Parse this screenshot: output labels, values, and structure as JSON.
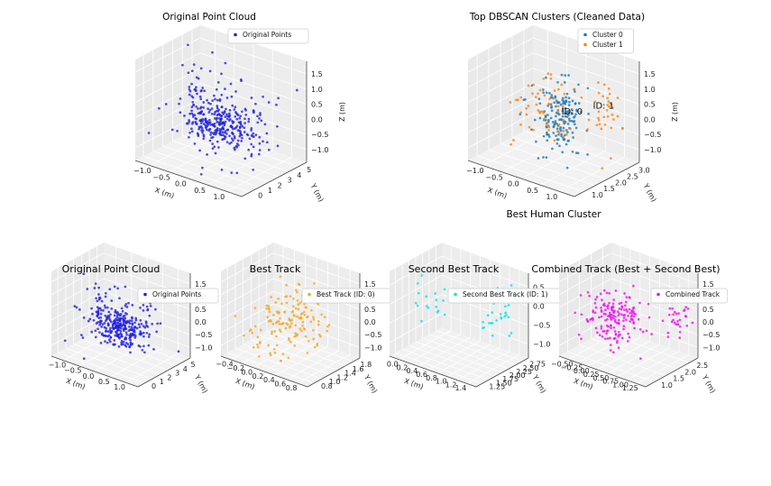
{
  "chart_data": [
    {
      "type": "scatter",
      "panel": 1,
      "title": "Original Point Cloud",
      "xlabel": "X (m)",
      "ylabel": "Y (m)",
      "zlabel": "Z (m)",
      "x_ticks": [
        "−1.0",
        "−0.5",
        "0.0",
        "0.5",
        "1.0"
      ],
      "y_ticks": [
        "0",
        "1",
        "2",
        "3",
        "4",
        "5"
      ],
      "z_ticks": [
        "1.5",
        "1.0",
        "0.5",
        "0.0",
        "−0.5",
        "−1.0"
      ],
      "xlim": [
        -1.25,
        1.4
      ],
      "ylim": [
        -0.2,
        5.3
      ],
      "zlim": [
        -1.4,
        1.6
      ],
      "grid": true,
      "legend_position": "top-right",
      "series": [
        {
          "name": "Original Points",
          "color": "#1f1fe0",
          "clusters": [
            {
              "center": [
                0.15,
                2.2,
                -0.2
              ],
              "spread": [
                0.35,
                0.6,
                0.3
              ],
              "count": 230
            },
            {
              "center": [
                -0.55,
                2.4,
                0.0
              ],
              "spread": [
                0.08,
                0.4,
                0.5
              ],
              "count": 30
            },
            {
              "center": [
                0.9,
                2.6,
                -0.3
              ],
              "spread": [
                0.12,
                0.5,
                0.45
              ],
              "count": 25
            },
            {
              "center": [
                0.1,
                2.5,
                0.0
              ],
              "spread": [
                0.9,
                1.6,
                0.7
              ],
              "count": 110
            }
          ]
        }
      ]
    },
    {
      "type": "scatter",
      "panel": 2,
      "title": "Top DBSCAN Clusters (Cleaned Data)",
      "subtitle": "Best Human Cluster",
      "xlabel": "X (m)",
      "ylabel": "Y (m)",
      "zlabel": "Z (m)",
      "x_ticks": [
        "−1.0",
        "−0.5",
        "0.0",
        "0.5",
        "1.0"
      ],
      "y_ticks": [
        "1.0",
        "1.5",
        "2.0",
        "2.5",
        "3.0"
      ],
      "z_ticks": [
        "1.5",
        "1.0",
        "0.5",
        "0.0",
        "−0.5",
        "−1.0"
      ],
      "xlim": [
        -1.25,
        1.4
      ],
      "ylim": [
        0.7,
        3.1
      ],
      "zlim": [
        -1.4,
        1.6
      ],
      "grid": true,
      "legend_position": "top-right",
      "annotations": [
        {
          "text": "ID: 0",
          "at": [
            0.2,
            2.0,
            0.0
          ]
        },
        {
          "text": "ID: 1",
          "at": [
            0.85,
            2.2,
            0.35
          ]
        }
      ],
      "series": [
        {
          "name": "Cluster 0",
          "color": "#1f77b4",
          "clusters": [
            {
              "center": [
                0.15,
                2.0,
                -0.15
              ],
              "spread": [
                0.25,
                0.35,
                0.45
              ],
              "count": 170
            }
          ]
        },
        {
          "name": "Cluster 1",
          "color": "#ff7f0e",
          "clusters": [
            {
              "center": [
                -0.2,
                2.1,
                0.0
              ],
              "spread": [
                0.25,
                0.5,
                0.55
              ],
              "count": 60
            },
            {
              "center": [
                1.05,
                2.5,
                0.2
              ],
              "spread": [
                0.1,
                0.3,
                0.5
              ],
              "count": 35
            }
          ]
        }
      ]
    },
    {
      "type": "scatter",
      "panel": 3,
      "title": "Original Point Cloud",
      "xlabel": "X (m)",
      "ylabel": "Y (m)",
      "zlabel": "",
      "x_ticks": [
        "−1.0",
        "−0.5",
        "0.0",
        "0.5",
        "1.0"
      ],
      "y_ticks": [
        "0",
        "1",
        "2",
        "3",
        "4",
        "5"
      ],
      "z_ticks": [
        "1.5",
        "1.0",
        "0.5",
        "0.0",
        "−0.5",
        "−1.0"
      ],
      "xlim": [
        -1.25,
        1.4
      ],
      "ylim": [
        -0.2,
        5.3
      ],
      "zlim": [
        -1.4,
        1.6
      ],
      "grid": true,
      "legend_position": "top-right",
      "series": [
        {
          "name": "Original Points",
          "color": "#1f1fe0",
          "clusters": [
            {
              "center": [
                0.15,
                2.2,
                -0.2
              ],
              "spread": [
                0.3,
                0.5,
                0.28
              ],
              "count": 210
            },
            {
              "center": [
                -0.55,
                2.4,
                0.0
              ],
              "spread": [
                0.08,
                0.4,
                0.5
              ],
              "count": 30
            },
            {
              "center": [
                0.9,
                2.6,
                -0.3
              ],
              "spread": [
                0.12,
                0.5,
                0.45
              ],
              "count": 25
            },
            {
              "center": [
                0.1,
                2.5,
                0.0
              ],
              "spread": [
                0.9,
                1.6,
                0.7
              ],
              "count": 90
            }
          ]
        }
      ]
    },
    {
      "type": "scatter",
      "panel": 4,
      "title": "Best Track",
      "xlabel": "X (m)",
      "ylabel": "Y (m)",
      "zlabel": "",
      "x_ticks": [
        "−0.4",
        "−0.2",
        "0.0",
        "0.2",
        "0.4",
        "0.6",
        "0.8"
      ],
      "y_ticks": [
        "0.8",
        "1.0",
        "1.2",
        "1.4",
        "1.6",
        "1.8"
      ],
      "z_ticks": [
        "1.5",
        "1.0",
        "0.5",
        "0.0",
        "−0.5",
        "−1.0"
      ],
      "xlim": [
        -0.5,
        0.9
      ],
      "ylim": [
        0.7,
        1.9
      ],
      "zlim": [
        -1.4,
        1.6
      ],
      "grid": true,
      "legend_position": "top-right",
      "series": [
        {
          "name": "Best Track (ID: 0)",
          "color": "#f5a623",
          "clusters": [
            {
              "center": [
                0.25,
                1.3,
                0.0
              ],
              "spread": [
                0.25,
                0.3,
                0.45
              ],
              "count": 150
            },
            {
              "center": [
                0.0,
                1.0,
                -0.9
              ],
              "spread": [
                0.15,
                0.15,
                0.2
              ],
              "count": 15
            }
          ]
        }
      ]
    },
    {
      "type": "scatter",
      "panel": 5,
      "title": "Second Best Track",
      "xlabel": "X (m)",
      "ylabel": "Y (m)",
      "zlabel": "",
      "x_ticks": [
        "0.0",
        "0.2",
        "0.4",
        "0.6",
        "0.8",
        "1.0",
        "1.2",
        "1.4"
      ],
      "y_ticks": [
        "1.25",
        "1.50",
        "1.75",
        "2.00",
        "2.25",
        "2.50",
        "2.75"
      ],
      "z_ticks": [
        "0.5",
        "0.0",
        "−0.5",
        "−1.0"
      ],
      "xlim": [
        -0.1,
        1.5
      ],
      "ylim": [
        1.1,
        2.9
      ],
      "zlim": [
        -1.4,
        0.8
      ],
      "grid": true,
      "legend_position": "top-right",
      "series": [
        {
          "name": "Second Best Track (ID: 1)",
          "color": "#00e5ee",
          "clusters": [
            {
              "center": [
                1.35,
                2.3,
                0.0
              ],
              "spread": [
                0.06,
                0.3,
                0.35
              ],
              "count": 40
            },
            {
              "center": [
                0.2,
                2.1,
                -0.2
              ],
              "spread": [
                0.2,
                0.5,
                0.4
              ],
              "count": 18
            }
          ]
        }
      ]
    },
    {
      "type": "scatter",
      "panel": 6,
      "title": "Combined Track (Best + Second Best)",
      "xlabel": "X (m)",
      "ylabel": "Y (m)",
      "zlabel": "",
      "x_ticks": [
        "−0.50",
        "−0.25",
        "0.00",
        "0.25",
        "0.50",
        "0.75",
        "1.00",
        "1.25"
      ],
      "y_ticks": [
        "1.0",
        "1.5",
        "2.0",
        "2.5"
      ],
      "z_ticks": [
        "1.5",
        "1.0",
        "0.5",
        "0.0",
        "−0.5",
        "−1.0"
      ],
      "xlim": [
        -0.6,
        1.4
      ],
      "ylim": [
        0.8,
        2.8
      ],
      "zlim": [
        -1.4,
        1.6
      ],
      "grid": true,
      "legend_position": "top-right",
      "series": [
        {
          "name": "Combined Track",
          "color": "#ee10ee",
          "clusters": [
            {
              "center": [
                0.2,
                1.6,
                0.0
              ],
              "spread": [
                0.3,
                0.35,
                0.4
              ],
              "count": 170
            },
            {
              "center": [
                1.2,
                2.4,
                0.0
              ],
              "spread": [
                0.06,
                0.2,
                0.35
              ],
              "count": 30
            }
          ]
        }
      ]
    }
  ]
}
